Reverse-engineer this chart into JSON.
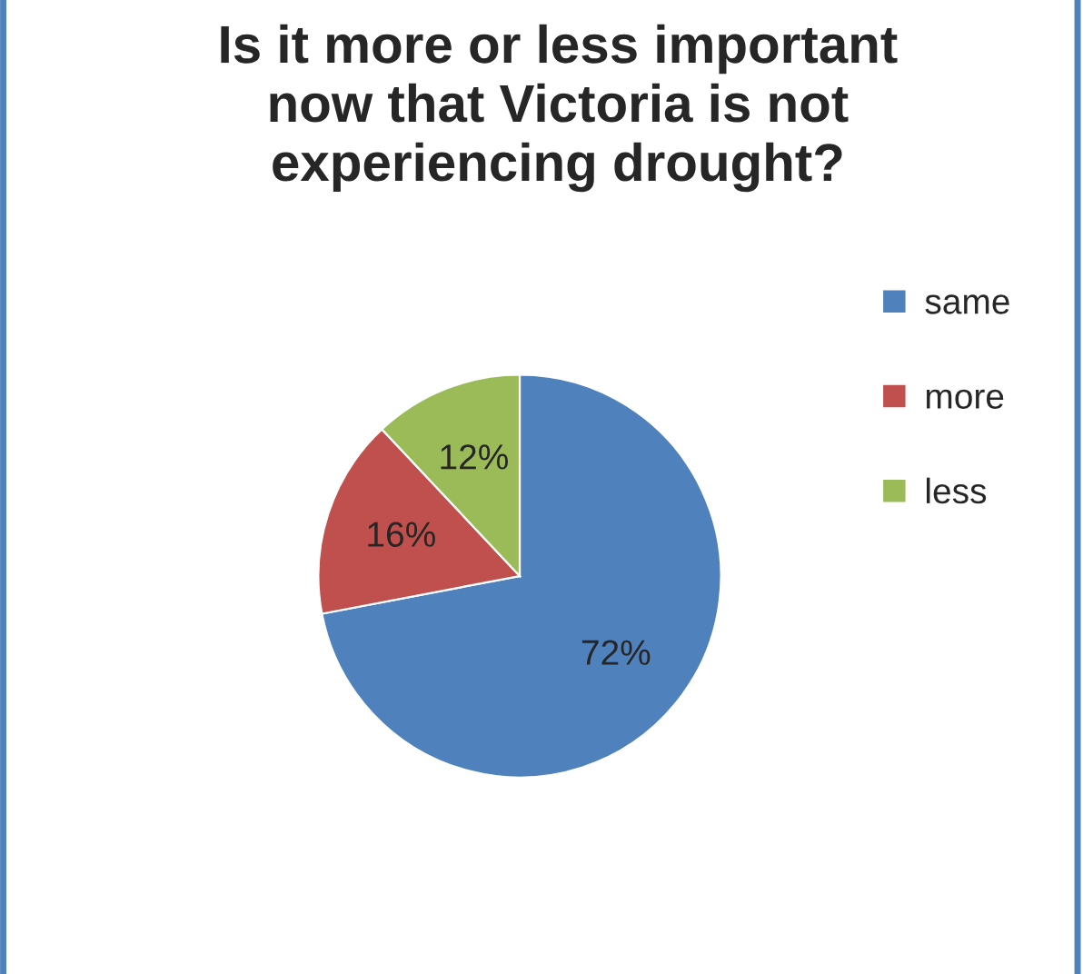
{
  "chart_data": {
    "type": "pie",
    "title": "Is it more or less important\nnow that Victoria is not\nexperiencing drought?",
    "categories": [
      "same",
      "more",
      "less"
    ],
    "values": [
      72,
      16,
      12
    ],
    "colors": [
      "#4f81bd",
      "#c0504d",
      "#9bbb59"
    ],
    "value_labels": [
      "72%",
      "16%",
      "12%"
    ],
    "legend": "right"
  }
}
